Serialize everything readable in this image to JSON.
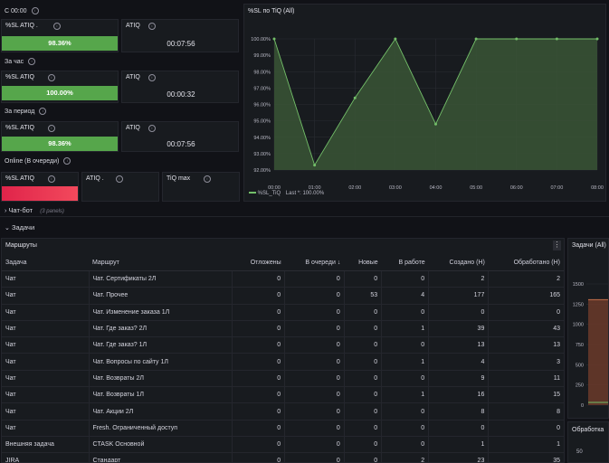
{
  "sections": {
    "top": "С 00:00",
    "hour": "За час",
    "period": "За период",
    "online": "Online (В очереди)"
  },
  "stats": {
    "top": {
      "sl_label": "%SL ATIQ .",
      "sl_value": "98.36%",
      "sl_fraction": 0.9836,
      "atiq_label": "ATIQ",
      "atiq_value": "00:07:56"
    },
    "hour": {
      "sl_label": "%SL ATIQ",
      "sl_value": "100.00%",
      "sl_fraction": 1.0,
      "atiq_label": "ATIQ",
      "atiq_value": "00:00:32"
    },
    "period": {
      "sl_label": "%SL ATIQ",
      "sl_value": "98.36%",
      "sl_fraction": 0.9836,
      "atiq_label": "ATIQ",
      "atiq_value": "00:07:56"
    },
    "online": {
      "sl_label": "%SL ATIQ",
      "atiq_label": "ATIQ .",
      "tiq_max_label": "TiQ max"
    }
  },
  "chart_panel": {
    "title": "%SL по TiQ (All)",
    "legend_label": "%SL_TiQ",
    "legend_last": "Last *: 100.00%"
  },
  "chart_data": {
    "type": "area",
    "x": [
      "00:00",
      "01:00",
      "02:00",
      "03:00",
      "04:00",
      "05:00",
      "06:00",
      "07:00",
      "08:00"
    ],
    "series": [
      {
        "name": "%SL_TiQ",
        "values": [
          100.0,
          92.3,
          96.4,
          100.0,
          94.8,
          100.0,
          100.0,
          100.0,
          100.0
        ]
      }
    ],
    "y_ticks": [
      "100.00%",
      "99.00%",
      "98.00%",
      "97.00%",
      "96.00%",
      "95.00%",
      "94.00%",
      "93.00%",
      "92.00%"
    ],
    "ylim": [
      92.0,
      100.0
    ],
    "grid": true,
    "legend": "bottom-left",
    "colors": {
      "line": "#73bf69",
      "fill": "#3a5536"
    }
  },
  "rows": {
    "chatbot": {
      "title": "Чат-бот",
      "count": "(3 panels)"
    },
    "tasks": {
      "title": "Задачи"
    }
  },
  "routes_table": {
    "title": "Маршруты",
    "headers": [
      "Задача",
      "Маршрут",
      "Отложены",
      "В очереди ↓",
      "Новые",
      "В работе",
      "Создано (Н)",
      "Обработано (Н)"
    ],
    "rows": [
      [
        "Чат",
        "Чат. Сертификаты 2Л",
        "0",
        "0",
        "0",
        "0",
        "2",
        "2"
      ],
      [
        "Чат",
        "Чат. Прочее",
        "0",
        "0",
        "53",
        "4",
        "177",
        "165"
      ],
      [
        "Чат",
        "Чат. Изменение заказа 1Л",
        "0",
        "0",
        "0",
        "0",
        "0",
        "0"
      ],
      [
        "Чат",
        "Чат. Где заказ? 2Л",
        "0",
        "0",
        "0",
        "1",
        "39",
        "43"
      ],
      [
        "Чат",
        "Чат. Где заказ? 1Л",
        "0",
        "0",
        "0",
        "0",
        "13",
        "13"
      ],
      [
        "Чат",
        "Чат. Вопросы по сайту 1Л",
        "0",
        "0",
        "0",
        "1",
        "4",
        "3"
      ],
      [
        "Чат",
        "Чат. Возвраты 2Л",
        "0",
        "0",
        "0",
        "0",
        "9",
        "11"
      ],
      [
        "Чат",
        "Чат. Возвраты 1Л",
        "0",
        "0",
        "0",
        "1",
        "16",
        "15"
      ],
      [
        "Чат",
        "Чат. Акции 2Л",
        "0",
        "0",
        "0",
        "0",
        "8",
        "8"
      ],
      [
        "Чат",
        "Fresh. Ограниченный доступ",
        "0",
        "0",
        "0",
        "0",
        "0",
        "0"
      ],
      [
        "Внешняя задача",
        "CTASK Основной",
        "0",
        "0",
        "0",
        "0",
        "1",
        "1"
      ],
      [
        "JIRA",
        "Стандарт",
        "0",
        "0",
        "0",
        "2",
        "23",
        "35"
      ]
    ]
  },
  "tasks_panel": {
    "title": "Задачи (All)",
    "y_ticks": [
      "1500",
      "1250",
      "1000",
      "750",
      "500",
      "250",
      "0"
    ],
    "colors": {
      "band": "#6b3a2a",
      "band_line": "#c4704a"
    }
  },
  "processing_panel": {
    "title": "Обработка",
    "y_tick": "50"
  },
  "colors": {
    "ok": "#56a64b",
    "critical": "#f2495c",
    "bg": "#111217",
    "panel": "#181b1f"
  }
}
